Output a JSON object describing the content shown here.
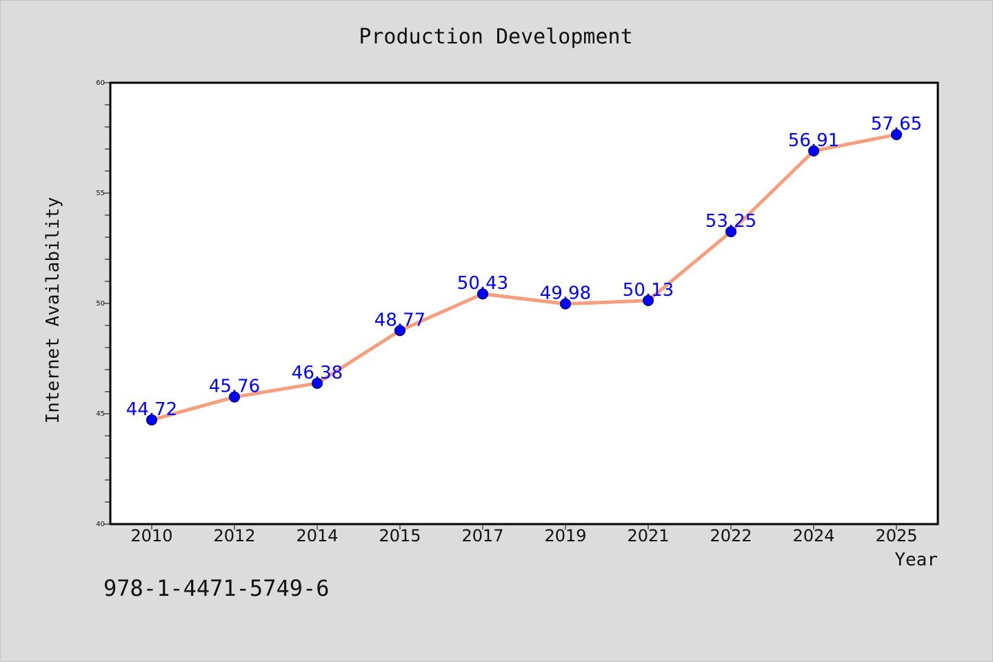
{
  "chart_data": {
    "type": "line",
    "title": "Production Development",
    "xlabel": "Year",
    "ylabel": "Internet Availability",
    "categories": [
      "2010",
      "2012",
      "2014",
      "2015",
      "2017",
      "2019",
      "2021",
      "2022",
      "2024",
      "2025"
    ],
    "series": [
      {
        "values": [
          44.72,
          45.76,
          46.38,
          48.77,
          50.43,
          49.98,
          50.13,
          53.25,
          56.91,
          57.65
        ],
        "line_color": "#f4a07e",
        "marker_color": "#0000ff"
      }
    ],
    "data_labels": [
      "44.72",
      "45.76",
      "46.38",
      "48.77",
      "50.43",
      "49.98",
      "50.13",
      "53.25",
      "56.91",
      "57.65"
    ],
    "ylim": [
      40,
      60
    ],
    "y_ticks": [
      40,
      45,
      50,
      55,
      60
    ],
    "grid": false,
    "legend": "none"
  },
  "footer": {
    "text": "978-1-4471-5749-6"
  },
  "colors": {
    "background": "#dcdcdc",
    "plot_background": "#ffffff",
    "line": "#f4a07e",
    "marker": "#0000ff",
    "data_label": "#0000ff"
  }
}
